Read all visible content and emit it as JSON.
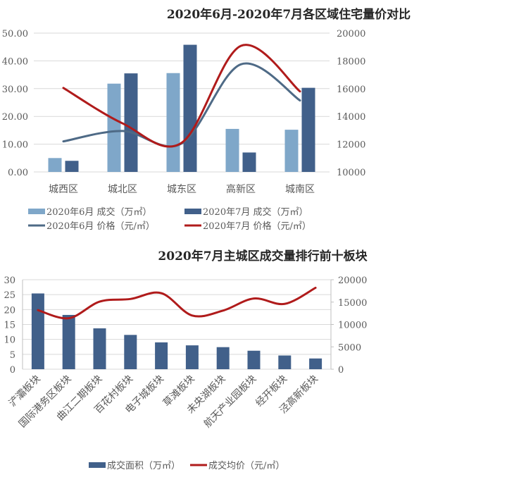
{
  "chart_data": [
    {
      "type": "bar+line",
      "title": "2020年6月-2020年7月各区域住宅量价对比",
      "categories": [
        "城西区",
        "城北区",
        "城东区",
        "高新区",
        "城南区"
      ],
      "left_axis": {
        "ylim": [
          0,
          50
        ],
        "ticks": [
          "0.00",
          "10.00",
          "20.00",
          "30.00",
          "40.00",
          "50.00"
        ]
      },
      "right_axis": {
        "ylim": [
          10000,
          20000
        ],
        "ticks": [
          "10000",
          "12000",
          "14000",
          "16000",
          "18000",
          "20000"
        ]
      },
      "grid": true,
      "legend_position": "bottom",
      "series": [
        {
          "name": "2020年6月 成交（万㎡）",
          "kind": "bar",
          "axis": "left",
          "color": "#7fa7c9",
          "values": [
            5.0,
            31.8,
            35.6,
            15.5,
            15.2
          ]
        },
        {
          "name": "2020年7月 成交（万㎡）",
          "kind": "bar",
          "axis": "left",
          "color": "#41608a",
          "values": [
            4.0,
            35.5,
            45.8,
            7.0,
            30.3
          ]
        },
        {
          "name": "2020年6月 价格（元/㎡）",
          "kind": "line",
          "axis": "right",
          "color": "#4e6a86",
          "values": [
            12200,
            12950,
            12050,
            17750,
            15150
          ]
        },
        {
          "name": "2020年7月 价格（元/㎡）",
          "kind": "line",
          "axis": "right",
          "color": "#b01b1b",
          "values": [
            16050,
            13500,
            12100,
            19080,
            15800
          ]
        }
      ]
    },
    {
      "type": "bar+line",
      "title": "2020年7月主城区成交量排行前十板块",
      "categories": [
        "浐灞板块",
        "国际港务区板块",
        "曲江二期板块",
        "百花村板块",
        "电子城板块",
        "草滩板块",
        "未央湖板块",
        "航天产业园板块",
        "经开板块",
        "泾高新板块"
      ],
      "left_axis": {
        "ylim": [
          0,
          30
        ],
        "ticks": [
          "0",
          "5",
          "10",
          "15",
          "20",
          "25",
          "30"
        ]
      },
      "right_axis": {
        "ylim": [
          0,
          20000
        ],
        "ticks": [
          "0",
          "5000",
          "10000",
          "15000",
          "20000"
        ]
      },
      "grid": true,
      "legend_position": "bottom",
      "series": [
        {
          "name": "成交面积（万㎡）",
          "kind": "bar",
          "axis": "left",
          "color": "#41608a",
          "values": [
            25.4,
            18.2,
            13.7,
            11.5,
            9.0,
            8.0,
            7.4,
            6.2,
            4.6,
            3.6
          ]
        },
        {
          "name": "成交均价（元/㎡）",
          "kind": "line",
          "axis": "right",
          "color": "#b01b1b",
          "values": [
            13200,
            11400,
            15100,
            15700,
            17000,
            12000,
            13100,
            15800,
            14600,
            18200
          ]
        }
      ]
    }
  ]
}
